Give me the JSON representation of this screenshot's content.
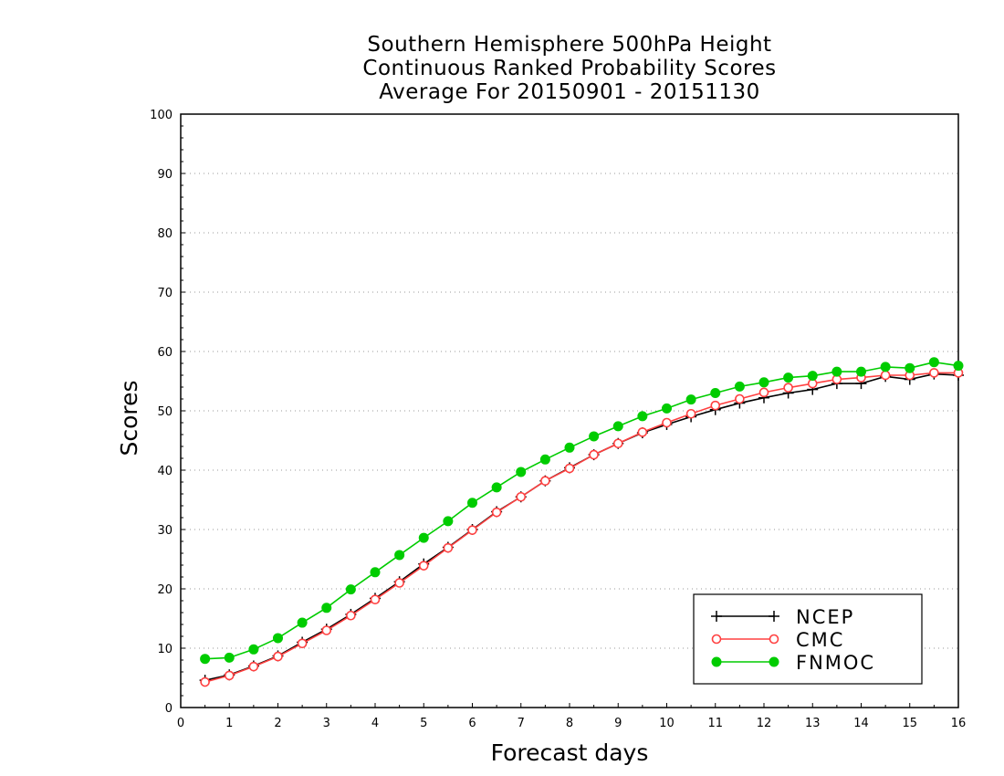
{
  "chart_data": {
    "type": "line",
    "title": [
      "Southern Hemisphere 500hPa Height",
      "Continuous Ranked Probability Scores",
      "Average For 20150901 - 20151130"
    ],
    "xlabel": "Forecast days",
    "ylabel": "Scores",
    "xlim": [
      0,
      16
    ],
    "ylim": [
      0,
      100
    ],
    "x_ticks": [
      0,
      1,
      2,
      3,
      4,
      5,
      6,
      7,
      8,
      9,
      10,
      11,
      12,
      13,
      14,
      15,
      16
    ],
    "y_ticks": [
      0,
      10,
      20,
      30,
      40,
      50,
      60,
      70,
      80,
      90,
      100
    ],
    "grid": "horizontal dotted",
    "legend_position": "bottom-right",
    "x": [
      0.5,
      1,
      1.5,
      2,
      2.5,
      3,
      3.5,
      4,
      4.5,
      5,
      5.5,
      6,
      6.5,
      7,
      7.5,
      8,
      8.5,
      9,
      9.5,
      10,
      10.5,
      11,
      11.5,
      12,
      12.5,
      13,
      13.5,
      14,
      14.5,
      15,
      15.5,
      16
    ],
    "series": [
      {
        "name": "NCEP",
        "color": "#000000",
        "marker": "plus",
        "values": [
          4.6,
          5.5,
          7.0,
          8.7,
          11.0,
          13.2,
          15.7,
          18.4,
          21.2,
          24.2,
          27.0,
          30.0,
          33.0,
          35.5,
          38.2,
          40.4,
          42.6,
          44.5,
          46.3,
          47.7,
          49.0,
          50.2,
          51.3,
          52.2,
          53.0,
          53.6,
          54.6,
          54.6,
          55.8,
          55.3,
          56.2,
          56.0
        ]
      },
      {
        "name": "CMC",
        "color": "#ff4040",
        "marker": "open-circle",
        "values": [
          4.3,
          5.4,
          6.9,
          8.6,
          10.8,
          13.0,
          15.5,
          18.2,
          21.0,
          23.9,
          26.9,
          29.9,
          32.9,
          35.5,
          38.2,
          40.3,
          42.6,
          44.5,
          46.4,
          48.0,
          49.5,
          50.9,
          52.0,
          53.1,
          53.9,
          54.6,
          55.3,
          55.6,
          56.0,
          56.0,
          56.4,
          56.4
        ]
      },
      {
        "name": "FNMOC",
        "color": "#00cc00",
        "marker": "filled-circle",
        "values": [
          8.2,
          8.4,
          9.8,
          11.7,
          14.3,
          16.8,
          19.9,
          22.8,
          25.7,
          28.6,
          31.4,
          34.5,
          37.1,
          39.7,
          41.8,
          43.8,
          45.7,
          47.4,
          49.1,
          50.4,
          51.9,
          53.0,
          54.1,
          54.8,
          55.6,
          55.9,
          56.6,
          56.6,
          57.4,
          57.2,
          58.2,
          57.6
        ]
      }
    ]
  }
}
